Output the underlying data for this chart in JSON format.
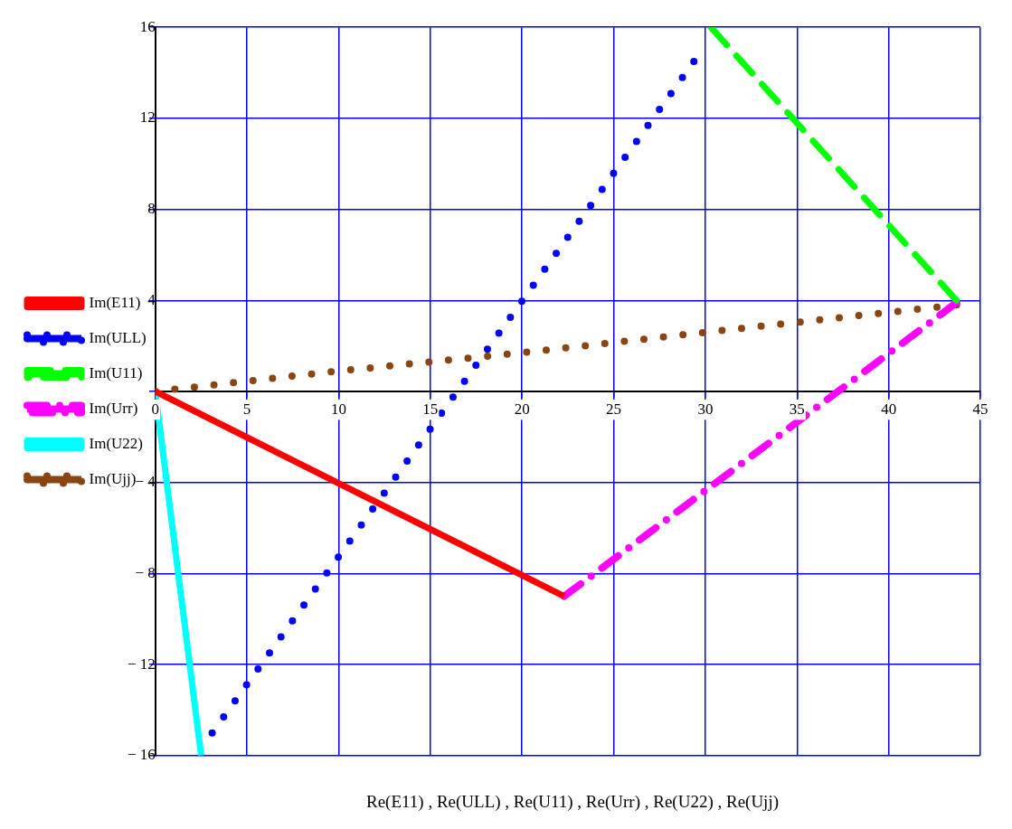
{
  "chart_data": {
    "type": "line",
    "xlabel": "Re(E11) , Re(ULL) , Re(U11) , Re(Urr) , Re(U22) , Re(Ujj)",
    "xlim": [
      0,
      45
    ],
    "ylim": [
      -16,
      16
    ],
    "xticks": [
      0,
      5,
      10,
      15,
      20,
      25,
      30,
      35,
      40,
      45
    ],
    "yticks": [
      {
        "value": -16,
        "label": "− 16"
      },
      {
        "value": -12,
        "label": "− 12"
      },
      {
        "value": -8,
        "label": "− 8"
      },
      {
        "value": -4,
        "label": "− 4"
      },
      {
        "value": 0,
        "label": null
      },
      4,
      8,
      12,
      16
    ],
    "grid": true,
    "legend": "left",
    "marker": "none",
    "series": [
      {
        "name": "Im(E11)",
        "color": "#ff0000",
        "line_style": "solid",
        "x": [
          0,
          22.3
        ],
        "values": [
          0,
          -9
        ]
      },
      {
        "name": "Im(ULL)",
        "color": "#0000ff",
        "line_style": "dotted",
        "x": [
          3.1,
          30
        ],
        "values": [
          -15,
          15.2
        ]
      },
      {
        "name": "Im(U11)",
        "color": "#00ff00",
        "line_style": "dashed",
        "x": [
          30.3,
          43.7
        ],
        "values": [
          16,
          4
        ]
      },
      {
        "name": "Im(Urr)",
        "color": "#ff00ff",
        "line_style": "dashdot",
        "x": [
          22.3,
          43.7
        ],
        "values": [
          -9,
          3.9
        ]
      },
      {
        "name": "Im(U22)",
        "color": "#00ffff",
        "line_style": "solid",
        "x": [
          0,
          2.5
        ],
        "values": [
          0,
          -16
        ]
      },
      {
        "name": "Im(Ujj)",
        "color": "#8b4513",
        "line_style": "dotted",
        "x": [
          0,
          10,
          20,
          30,
          43.7
        ],
        "values": [
          0,
          0.9,
          1.7,
          2.6,
          3.8
        ]
      }
    ]
  }
}
